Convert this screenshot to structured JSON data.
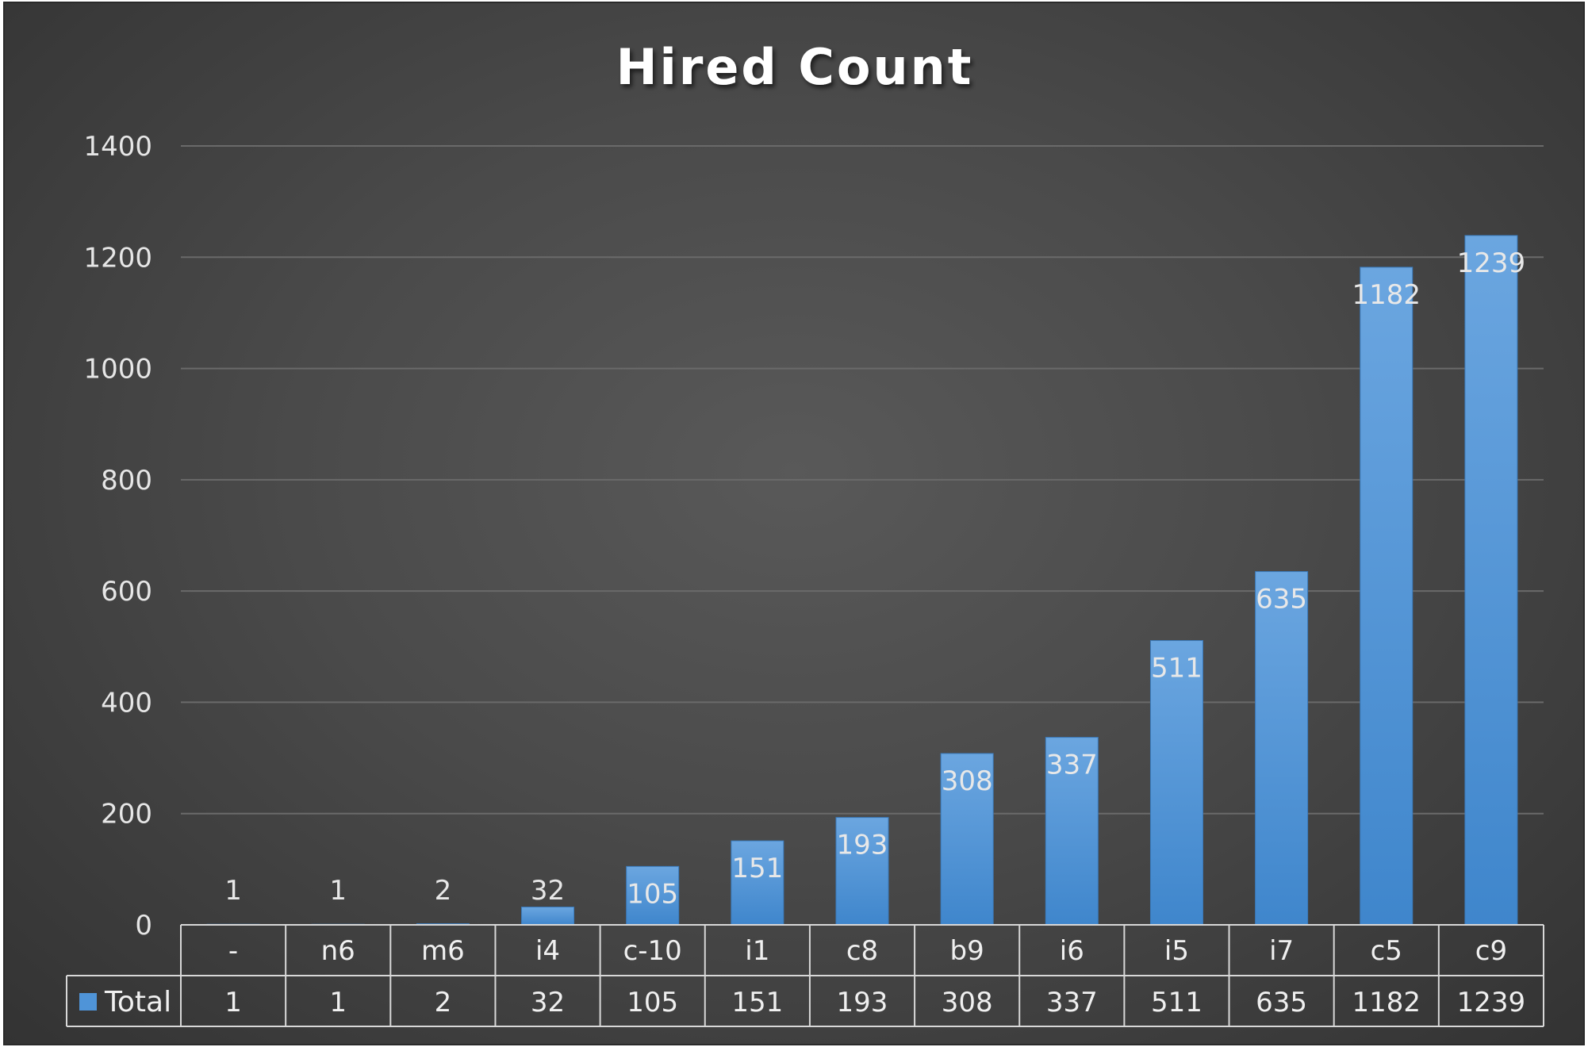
{
  "chart_data": {
    "type": "bar",
    "title": "Hired Count",
    "xlabel": "",
    "ylabel": "",
    "categories": [
      "-",
      "n6",
      "m6",
      "i4",
      "c-10",
      "i1",
      "c8",
      "b9",
      "i6",
      "i5",
      "i7",
      "c5",
      "c9"
    ],
    "series": [
      {
        "name": "Total",
        "values": [
          1,
          1,
          2,
          32,
          105,
          151,
          193,
          308,
          337,
          511,
          635,
          1182,
          1239
        ]
      }
    ],
    "ylim": [
      0,
      1400
    ],
    "yticks": [
      0,
      200,
      400,
      600,
      800,
      1000,
      1200,
      1400
    ],
    "grid": true,
    "data_table": true,
    "bar_color": "#4f94d8",
    "background_color": "#4a4a4a"
  }
}
